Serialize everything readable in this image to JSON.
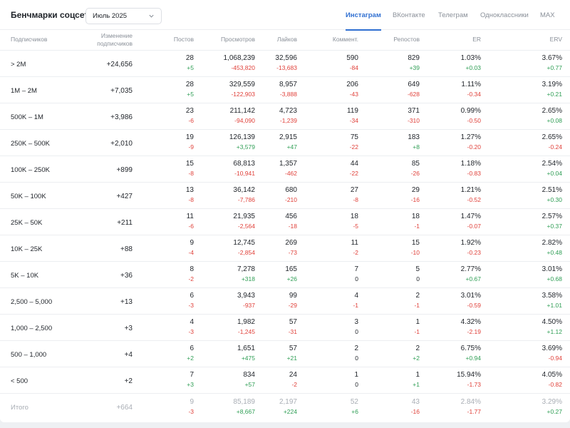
{
  "title": "Бенчмарки соцсетей",
  "month": "Июль 2025",
  "tabs": [
    "Инстаграм",
    "ВКонтакте",
    "Телеграм",
    "Одноклассники",
    "MAX"
  ],
  "active_tab": 0,
  "columns": {
    "subscribers": "Подписчиков",
    "subs_change_1": "Изменение",
    "subs_change_2": "подписчиков",
    "posts": "Постов",
    "views": "Просмотров",
    "likes": "Лайков",
    "comments": "Коммент.",
    "reposts": "Репостов",
    "er": "ER",
    "erv": "ERV"
  },
  "rows": [
    {
      "range": "> 2M",
      "subs": "+24,656",
      "posts": [
        "28",
        "+5"
      ],
      "views": [
        "1,068,239",
        "-453,820"
      ],
      "likes": [
        "32,596",
        "-13,683"
      ],
      "comments": [
        "590",
        "-84"
      ],
      "reposts": [
        "829",
        "+39"
      ],
      "er": [
        "1.03%",
        "+0.03"
      ],
      "erv": [
        "3.67%",
        "+0.77"
      ]
    },
    {
      "range": "1M – 2M",
      "subs": "+7,035",
      "posts": [
        "28",
        "+5"
      ],
      "views": [
        "329,559",
        "-122,903"
      ],
      "likes": [
        "8,957",
        "-3,888"
      ],
      "comments": [
        "206",
        "-43"
      ],
      "reposts": [
        "649",
        "-628"
      ],
      "er": [
        "1.11%",
        "-0.34"
      ],
      "erv": [
        "3.19%",
        "+0.21"
      ]
    },
    {
      "range": "500K – 1M",
      "subs": "+3,986",
      "posts": [
        "23",
        "-6"
      ],
      "views": [
        "211,142",
        "-94,090"
      ],
      "likes": [
        "4,723",
        "-1,239"
      ],
      "comments": [
        "119",
        "-34"
      ],
      "reposts": [
        "371",
        "-310"
      ],
      "er": [
        "0.99%",
        "-0.50"
      ],
      "erv": [
        "2.65%",
        "+0.08"
      ]
    },
    {
      "range": "250K – 500K",
      "subs": "+2,010",
      "posts": [
        "19",
        "-9"
      ],
      "views": [
        "126,139",
        "+3,579"
      ],
      "likes": [
        "2,915",
        "+47"
      ],
      "comments": [
        "75",
        "-22"
      ],
      "reposts": [
        "183",
        "+8"
      ],
      "er": [
        "1.27%",
        "-0.20"
      ],
      "erv": [
        "2.65%",
        "-0.24"
      ]
    },
    {
      "range": "100K – 250K",
      "subs": "+899",
      "posts": [
        "15",
        "-8"
      ],
      "views": [
        "68,813",
        "-10,941"
      ],
      "likes": [
        "1,357",
        "-462"
      ],
      "comments": [
        "44",
        "-22"
      ],
      "reposts": [
        "85",
        "-26"
      ],
      "er": [
        "1.18%",
        "-0.83"
      ],
      "erv": [
        "2.54%",
        "+0.04"
      ]
    },
    {
      "range": "50K – 100K",
      "subs": "+427",
      "posts": [
        "13",
        "-8"
      ],
      "views": [
        "36,142",
        "-7,786"
      ],
      "likes": [
        "680",
        "-210"
      ],
      "comments": [
        "27",
        "-8"
      ],
      "reposts": [
        "29",
        "-16"
      ],
      "er": [
        "1.21%",
        "-0.52"
      ],
      "erv": [
        "2.51%",
        "+0.30"
      ]
    },
    {
      "range": "25K – 50K",
      "subs": "+211",
      "posts": [
        "11",
        "-6"
      ],
      "views": [
        "21,935",
        "-2,564"
      ],
      "likes": [
        "456",
        "-18"
      ],
      "comments": [
        "18",
        "-5"
      ],
      "reposts": [
        "18",
        "-1"
      ],
      "er": [
        "1.47%",
        "-0.07"
      ],
      "erv": [
        "2.57%",
        "+0.37"
      ]
    },
    {
      "range": "10K – 25K",
      "subs": "+88",
      "posts": [
        "9",
        "-4"
      ],
      "views": [
        "12,745",
        "-2,854"
      ],
      "likes": [
        "269",
        "-73"
      ],
      "comments": [
        "11",
        "-2"
      ],
      "reposts": [
        "15",
        "-10"
      ],
      "er": [
        "1.92%",
        "-0.23"
      ],
      "erv": [
        "2.82%",
        "+0.48"
      ]
    },
    {
      "range": "5K – 10K",
      "subs": "+36",
      "posts": [
        "8",
        "-2"
      ],
      "views": [
        "7,278",
        "+318"
      ],
      "likes": [
        "165",
        "+26"
      ],
      "comments": [
        "7",
        "0"
      ],
      "reposts": [
        "5",
        "0"
      ],
      "er": [
        "2.77%",
        "+0.67"
      ],
      "erv": [
        "3.01%",
        "+0.68"
      ]
    },
    {
      "range": "2,500 – 5,000",
      "subs": "+13",
      "posts": [
        "6",
        "-3"
      ],
      "views": [
        "3,943",
        "-937"
      ],
      "likes": [
        "99",
        "-29"
      ],
      "comments": [
        "4",
        "-1"
      ],
      "reposts": [
        "2",
        "-1"
      ],
      "er": [
        "3.01%",
        "-0.59"
      ],
      "erv": [
        "3.58%",
        "+1.01"
      ]
    },
    {
      "range": "1,000 – 2,500",
      "subs": "+3",
      "posts": [
        "4",
        "-3"
      ],
      "views": [
        "1,982",
        "-1,245"
      ],
      "likes": [
        "57",
        "-31"
      ],
      "comments": [
        "3",
        "0"
      ],
      "reposts": [
        "1",
        "-1"
      ],
      "er": [
        "4.32%",
        "-2.19"
      ],
      "erv": [
        "4.50%",
        "+1.12"
      ]
    },
    {
      "range": "500 – 1,000",
      "subs": "+4",
      "posts": [
        "6",
        "+2"
      ],
      "views": [
        "1,651",
        "+475"
      ],
      "likes": [
        "57",
        "+21"
      ],
      "comments": [
        "2",
        "0"
      ],
      "reposts": [
        "2",
        "+2"
      ],
      "er": [
        "6.75%",
        "+0.94"
      ],
      "erv": [
        "3.69%",
        "-0.94"
      ]
    },
    {
      "range": "< 500",
      "subs": "+2",
      "posts": [
        "7",
        "+3"
      ],
      "views": [
        "834",
        "+57"
      ],
      "likes": [
        "24",
        "-2"
      ],
      "comments": [
        "1",
        "0"
      ],
      "reposts": [
        "1",
        "+1"
      ],
      "er": [
        "15.94%",
        "-1.73"
      ],
      "erv": [
        "4.05%",
        "-0.82"
      ]
    }
  ],
  "total": {
    "range": "Итого",
    "subs": "+664",
    "posts": [
      "9",
      "-3"
    ],
    "views": [
      "85,189",
      "+8,667"
    ],
    "likes": [
      "2,197",
      "+224"
    ],
    "comments": [
      "52",
      "+6"
    ],
    "reposts": [
      "43",
      "-16"
    ],
    "er": [
      "2.84%",
      "-1.77"
    ],
    "erv": [
      "3.29%",
      "+0.27"
    ]
  },
  "colors": {
    "accent": "#2f6fd1",
    "positive": "#2f9e55",
    "negative": "#e0413a",
    "muted": "#8a9099"
  },
  "icons": {
    "select": "chevron-down-icon"
  }
}
